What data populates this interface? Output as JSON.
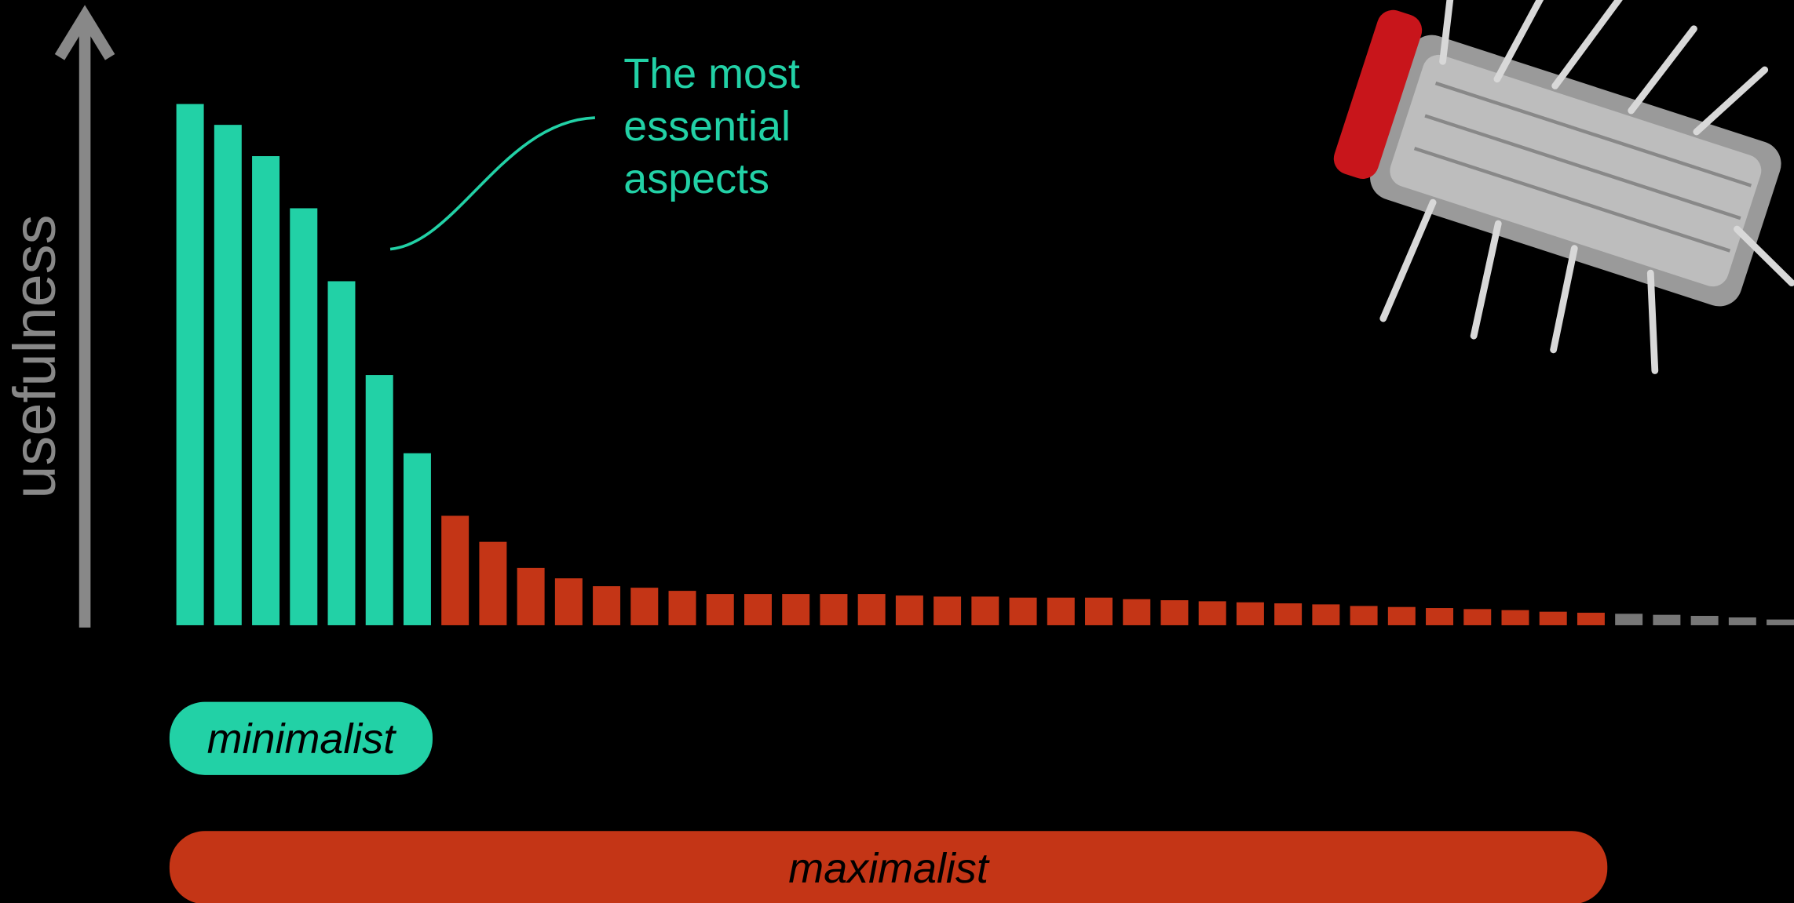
{
  "chart_data": {
    "type": "bar",
    "y_label": "usefulness",
    "annotation": [
      "The most",
      "essential",
      "aspects"
    ],
    "annotation_color": "#22d1a6",
    "ranges": [
      "minimalist",
      "maximalist"
    ],
    "range_colors": [
      "#22d1a6",
      "#c43516"
    ],
    "values": [
      100,
      96,
      90,
      80,
      66,
      48,
      33,
      21,
      16,
      11,
      9,
      7.5,
      7.2,
      6.6,
      6,
      6,
      6,
      6,
      6,
      5.7,
      5.5,
      5.5,
      5.3,
      5.3,
      5.3,
      5,
      4.8,
      4.6,
      4.4,
      4.2,
      4,
      3.7,
      3.5,
      3.3,
      3.1,
      2.9,
      2.6,
      2.4,
      2.2,
      2,
      1.8,
      1.5,
      1.1
    ],
    "colors": [
      "#22d1a6",
      "#22d1a6",
      "#22d1a6",
      "#22d1a6",
      "#22d1a6",
      "#22d1a6",
      "#22d1a6",
      "#c43516",
      "#c43516",
      "#c43516",
      "#c43516",
      "#c43516",
      "#c43516",
      "#c43516",
      "#c43516",
      "#c43516",
      "#c43516",
      "#c43516",
      "#c43516",
      "#c43516",
      "#c43516",
      "#c43516",
      "#c43516",
      "#c43516",
      "#c43516",
      "#c43516",
      "#c43516",
      "#c43516",
      "#c43516",
      "#c43516",
      "#c43516",
      "#c43516",
      "#c43516",
      "#c43516",
      "#c43516",
      "#c43516",
      "#c43516",
      "#c43516",
      "#777777",
      "#777777",
      "#777777",
      "#777777",
      "#777777"
    ],
    "ylim": [
      0,
      100
    ]
  }
}
